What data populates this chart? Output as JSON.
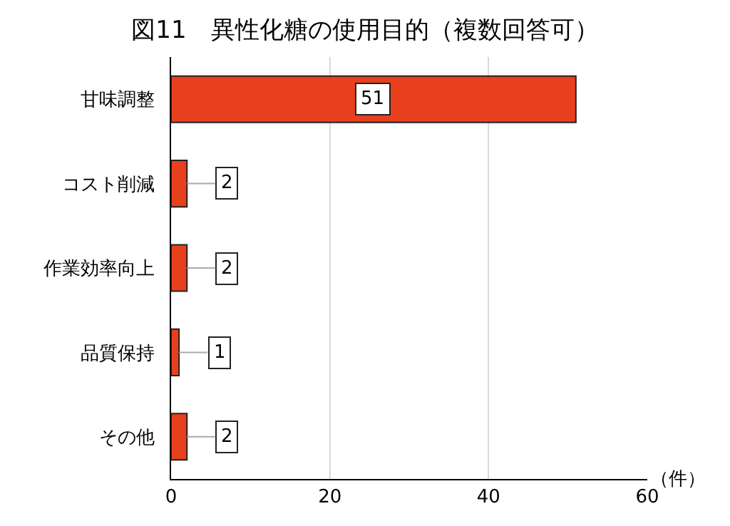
{
  "chart_data": {
    "type": "bar",
    "orientation": "horizontal",
    "title": "図11　異性化糖の使用目的（複数回答可）",
    "categories": [
      "甘味調整",
      "コスト削減",
      "作業効率向上",
      "品質保持",
      "その他"
    ],
    "values": [
      51,
      2,
      2,
      1,
      2
    ],
    "color": "#e8401c",
    "xlim": [
      0,
      60
    ],
    "xticks": [
      0,
      20,
      40,
      60
    ],
    "xlabel": "（件）",
    "grid": "x",
    "data_labels": true
  }
}
